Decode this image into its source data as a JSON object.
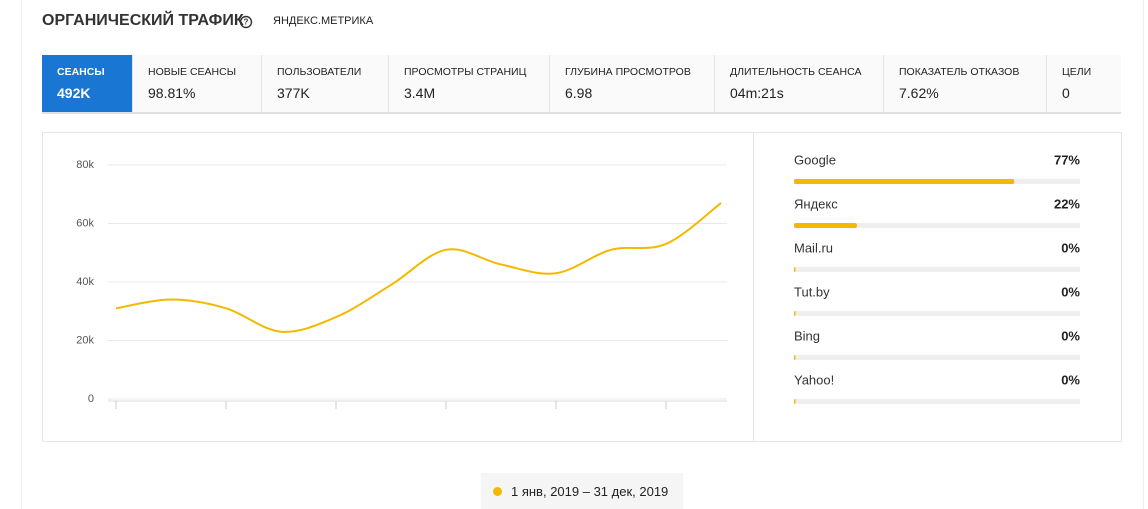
{
  "header": {
    "title": "ОРГАНИЧЕСКИЙ ТРАФИК",
    "source": "ЯНДЕКС.МЕТРИКА"
  },
  "metrics": [
    {
      "label": "СЕАНСЫ",
      "value": "492K"
    },
    {
      "label": "НОВЫЕ СЕАНСЫ",
      "value": "98.81%"
    },
    {
      "label": "ПОЛЬЗОВАТЕЛИ",
      "value": "377K"
    },
    {
      "label": "ПРОСМОТРЫ СТРАНИЦ",
      "value": "3.4M"
    },
    {
      "label": "ГЛУБИНА ПРОСМОТРОВ",
      "value": "6.98"
    },
    {
      "label": "ДЛИТЕЛЬНОСТЬ СЕАНСА",
      "value": "04m:21s"
    },
    {
      "label": "ПОКАЗАТЕЛЬ ОТКАЗОВ",
      "value": "7.62%"
    },
    {
      "label": "ЦЕЛИ",
      "value": "0"
    }
  ],
  "chart_data": [
    {
      "type": "line",
      "categories": [
        null,
        null,
        null,
        null,
        null,
        null,
        null,
        null,
        null,
        null,
        null,
        null
      ],
      "series": [
        {
          "name": "1 янв, 2019 – 31 дек, 2019",
          "color": "#f5b800",
          "values": [
            31000,
            34000,
            31000,
            23000,
            28000,
            39000,
            51000,
            46000,
            43000,
            51000,
            53000,
            67000
          ]
        }
      ],
      "ylim": [
        0,
        80000
      ],
      "yticks": [
        0,
        {
          "value": 20000,
          "label": "20k"
        },
        {
          "value": 40000,
          "label": "40k"
        },
        {
          "value": 60000,
          "label": "60k"
        },
        {
          "value": 80000,
          "label": "80k"
        }
      ],
      "grid": true
    },
    {
      "type": "hbar",
      "categories": [
        "Google",
        "Яндекс",
        "Mail.ru",
        "Tut.by",
        "Bing",
        "Yahoo!"
      ],
      "values": [
        77,
        22,
        0,
        0,
        0,
        0
      ],
      "value_labels": [
        "77%",
        "22%",
        "0%",
        "0%",
        "0%",
        "0%"
      ],
      "color": "#f5b800",
      "xlim": [
        0,
        100
      ]
    }
  ]
}
